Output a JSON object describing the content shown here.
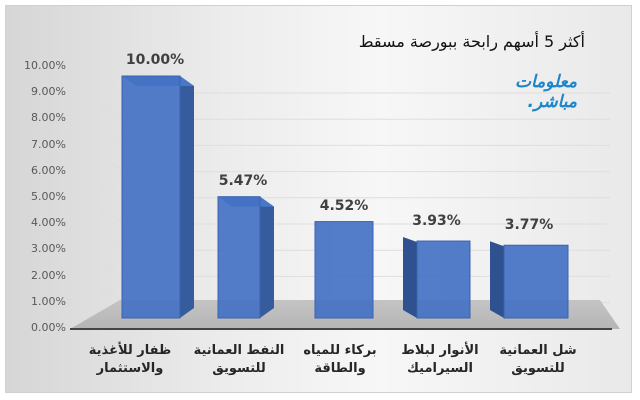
{
  "chart_data": {
    "type": "bar",
    "title": "أكثر 5 أسهم رابحة ببورصة مسقط",
    "categories": [
      "ظفار للأغذية والاستثمار",
      "النفط العمانية للتسويق",
      "بركاء للمياه والطاقة",
      "الأنوار لبلاط السيراميك",
      "شل العمانية للتسويق"
    ],
    "values": [
      10.0,
      5.47,
      4.52,
      3.93,
      3.77
    ],
    "data_labels": [
      "10.00%",
      "5.47%",
      "4.52%",
      "3.93%",
      "3.77%"
    ],
    "xlabel": "",
    "ylabel": "",
    "ylim": [
      0,
      10
    ],
    "yticks": [
      "0.00%",
      "1.00%",
      "2.00%",
      "3.00%",
      "4.00%",
      "5.00%",
      "6.00%",
      "7.00%",
      "8.00%",
      "9.00%",
      "10.00%"
    ],
    "grid": true,
    "legend": "none",
    "style": "3d-column",
    "bar_color": "#4472c4"
  },
  "header": {
    "title": "أكثر 5 أسهم رابحة ببورصة مسقط"
  },
  "logo": {
    "line1": "معلومات",
    "line2": "مباشر."
  },
  "x_labels": [
    {
      "line1": "ظفار للأغذية",
      "line2": "والاستثمار"
    },
    {
      "line1": "النفط العمانية",
      "line2": "للتسويق"
    },
    {
      "line1": "بركاء للمياه",
      "line2": "والطاقة"
    },
    {
      "line1": "الأنوار لبلاط",
      "line2": "السيراميك"
    },
    {
      "line1": "شل العمانية",
      "line2": "للتسويق"
    }
  ]
}
